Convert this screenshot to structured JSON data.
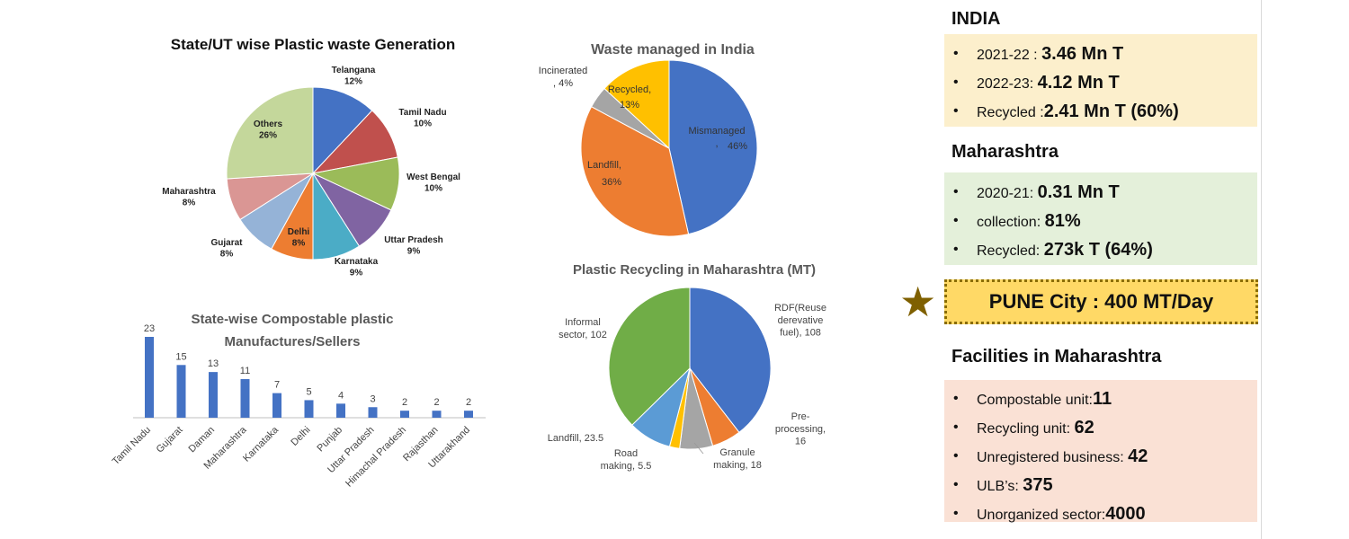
{
  "chart_data": [
    {
      "type": "pie",
      "title": "State/UT wise Plastic waste Generation",
      "categories": [
        "Telangana",
        "Tamil Nadu",
        "West Bengal",
        "Uttar Pradesh",
        "Karnataka",
        "Delhi",
        "Gujarat",
        "Maharashtra",
        "Others"
      ],
      "values": [
        12,
        10,
        10,
        9,
        9,
        8,
        8,
        8,
        26
      ],
      "labels": [
        "12%",
        "10%",
        "10%",
        "9%",
        "9%",
        "8%",
        "8%",
        "8%",
        "26%"
      ],
      "colors": [
        "#4472C4",
        "#C0504D",
        "#9BBB59",
        "#8064A2",
        "#4BACC6",
        "#ED7D31",
        "#95B3D7",
        "#DA9694",
        "#C4D79B"
      ]
    },
    {
      "type": "pie",
      "title": "Waste managed in India",
      "categories": [
        "Mismanaged",
        "Landfill",
        "Incinerated",
        "Recycled"
      ],
      "label_text": [
        "Mismanaged\n,",
        "Landfill,",
        "Incinerated\n, 4%",
        "Recycled,"
      ],
      "values": [
        46,
        36,
        4,
        13
      ],
      "labels": [
        "46%",
        "36%",
        "",
        "13%"
      ],
      "colors": [
        "#4472C4",
        "#ED7D31",
        "#A5A5A5",
        "#FFC000"
      ]
    },
    {
      "type": "pie",
      "title": "Plastic Recycling in Maharashtra (MT)",
      "categories": [
        "RDF(Reuse derevative fuel)",
        "Pre-processing",
        "Granule making",
        "Road making",
        "Landfill",
        "Informal sector"
      ],
      "label_text": [
        "RDF(Reuse\nderevative\nfuel), 108",
        "Pre-\nprocessing,\n16",
        "Granule\nmaking, 18",
        "Road\nmaking, 5.5",
        "Landfill, 23.5",
        "Informal\nsector, 102"
      ],
      "values": [
        108,
        16,
        18,
        5.5,
        23.5,
        102
      ],
      "colors": [
        "#4472C4",
        "#ED7D31",
        "#A5A5A5",
        "#FFC000",
        "#5B9BD5",
        "#70AD47"
      ]
    },
    {
      "type": "bar",
      "title": "State-wise Compostable plastic Manufactures/Sellers",
      "categories": [
        "Tamil Nadu",
        "Gujarat",
        "Daman",
        "Maharashtra",
        "Karnataka",
        "Delhi",
        "Punjab",
        "Uttar Pradesh",
        "Himachal Pradesh",
        "Rajasthan",
        "Uttarakhand"
      ],
      "values": [
        23,
        15,
        13,
        11,
        7,
        5,
        4,
        3,
        2,
        2,
        2
      ],
      "color": "#4472C4"
    }
  ],
  "india": {
    "title": "INDIA",
    "items": [
      {
        "label": "2021-22 : ",
        "value": "3.46 Mn T"
      },
      {
        "label": "2022-23: ",
        "value": "4.12 Mn T"
      },
      {
        "label": "Recycled :",
        "value": "2.41 Mn T (60%)"
      }
    ]
  },
  "maharashtra": {
    "title": "Maharashtra",
    "items": [
      {
        "label": "2020-21: ",
        "value": "0.31 Mn T"
      },
      {
        "label": "collection: ",
        "value": "81%"
      },
      {
        "label": "Recycled: ",
        "value": "273k T (64%)"
      }
    ]
  },
  "pune": {
    "text": "PUNE City : 400 MT/Day",
    "star": "★"
  },
  "facilities": {
    "title": "Facilities in Maharashtra",
    "items": [
      {
        "label": "Compostable unit:",
        "value": "11"
      },
      {
        "label": "Recycling unit: ",
        "value": "62"
      },
      {
        "label": "Unregistered business: ",
        "value": "42"
      },
      {
        "label": "ULB’s: ",
        "value": "375"
      },
      {
        "label": "Unorganized sector:",
        "value": "4000"
      }
    ]
  },
  "bullet": "•",
  "colors": {
    "india_bg": "#FCEFCC",
    "maha_bg": "#E4F0DA",
    "pune_bg": "#FFD966",
    "pune_border": "#8A6D00",
    "fac_bg": "#FAE1D5",
    "star": "#7F6000"
  }
}
